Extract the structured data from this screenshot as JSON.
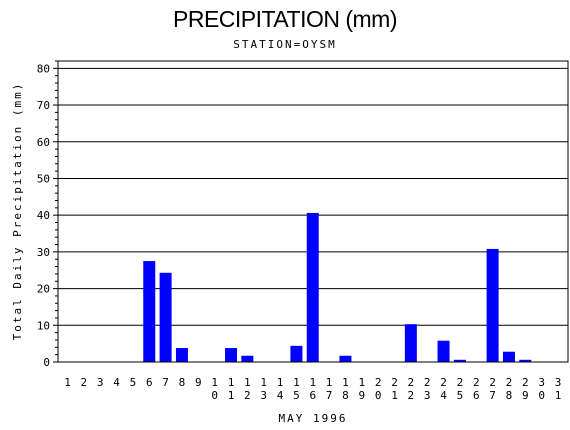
{
  "chart_data": {
    "type": "bar",
    "title": "PRECIPITATION (mm)",
    "subtitle": "STATION=OYSM",
    "xlabel": "MAY 1996",
    "ylabel": "Total Daily Precipitation (mm)",
    "ylim": [
      0,
      82
    ],
    "yticks": [
      0,
      10,
      20,
      30,
      40,
      50,
      60,
      70,
      80
    ],
    "grid": "horizontal",
    "bar_color": "#0000ff",
    "categories": [
      "1",
      "2",
      "3",
      "4",
      "5",
      "6",
      "7",
      "8",
      "9",
      "10",
      "11",
      "12",
      "13",
      "14",
      "15",
      "16",
      "17",
      "18",
      "19",
      "20",
      "21",
      "22",
      "23",
      "24",
      "25",
      "26",
      "27",
      "28",
      "29",
      "30",
      "31"
    ],
    "values": [
      0,
      0,
      0,
      0,
      0,
      27.5,
      24.3,
      3.8,
      0,
      0,
      3.8,
      1.7,
      0,
      0,
      4.4,
      40.6,
      0,
      1.7,
      0,
      0,
      0,
      10.3,
      0,
      5.8,
      0.6,
      0,
      30.8,
      2.8,
      0.6,
      0,
      0
    ]
  }
}
